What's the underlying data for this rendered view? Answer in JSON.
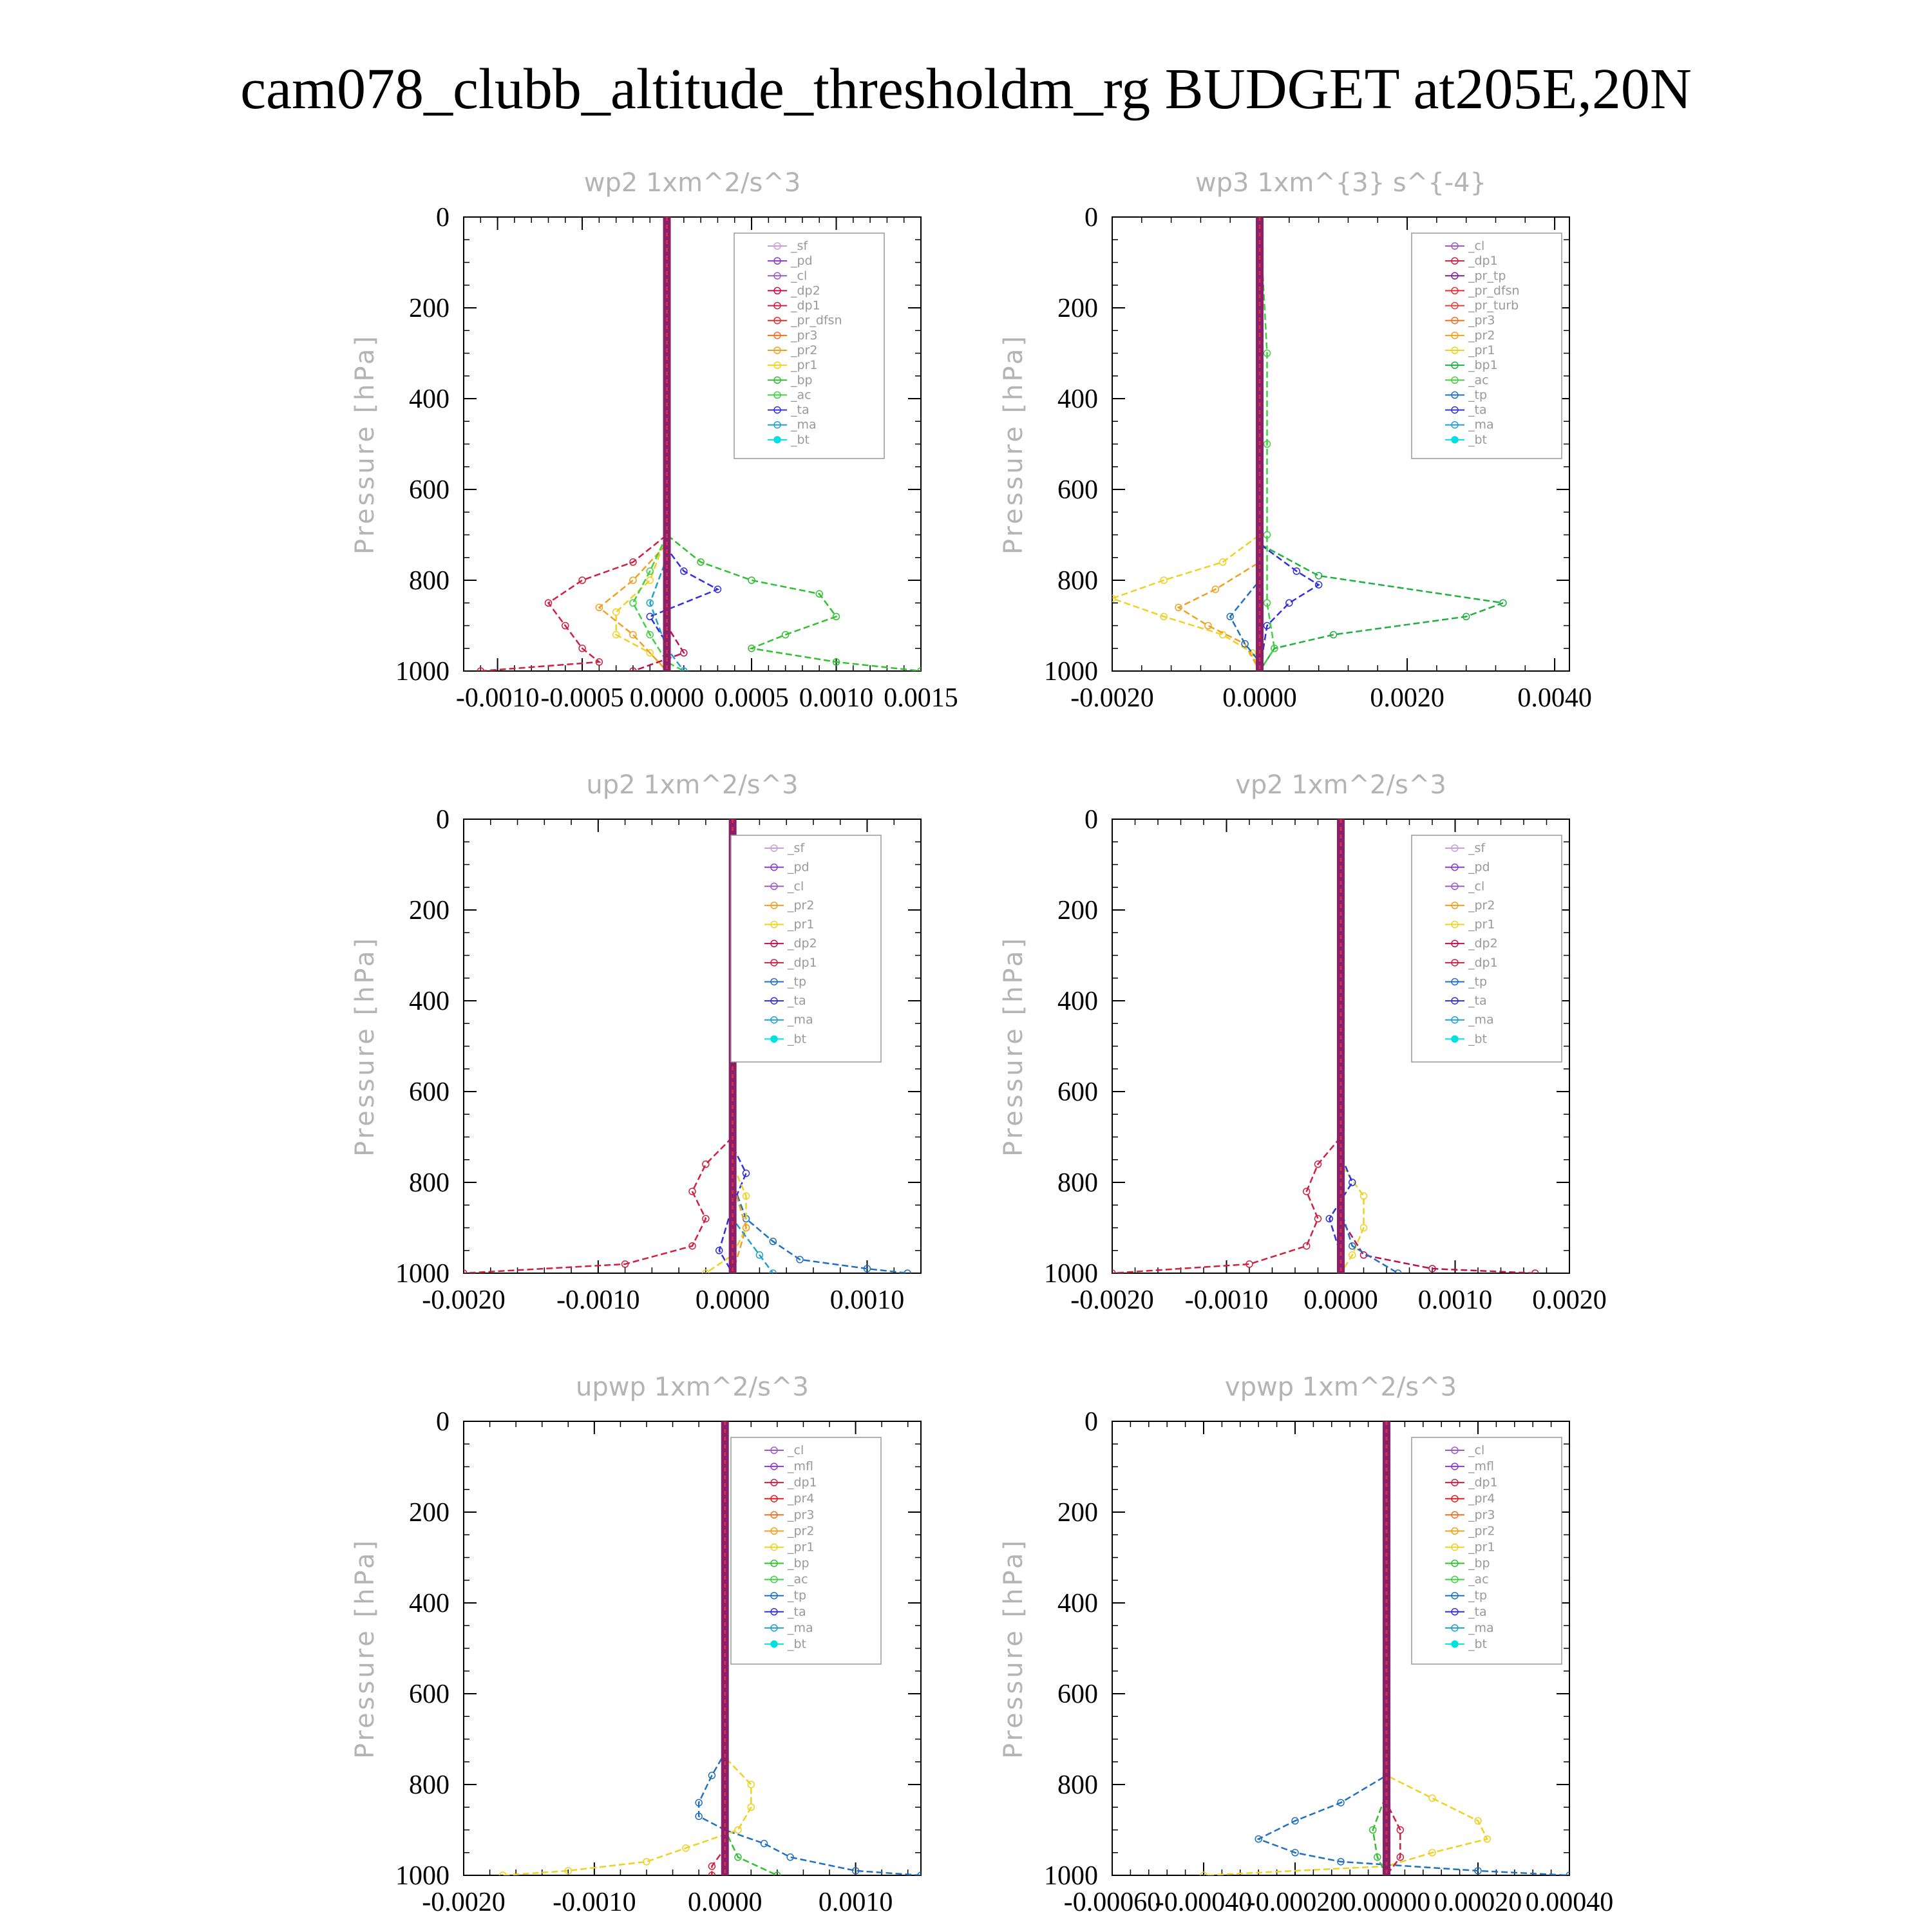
{
  "figure_title": "cam078_clubb_altitude_thresholdm_rg  BUDGET at205E,20N",
  "colors": {
    "_sf": "#c9a0dc",
    "_pd": "#8a3cc8",
    "_cl": "#a05ac8",
    "_mfl": "#8a3cc8",
    "_dp2": "#c01050",
    "_dp1": "#d02040",
    "_pr_dfsn": "#e03030",
    "_pr_tp": "#8020a0",
    "_pr_turb": "#e04040",
    "_pr4": "#e02020",
    "_pr3": "#f07020",
    "_pr2": "#f0a020",
    "_pr1": "#f0d020",
    "_bp1": "#20b040",
    "_bp": "#30c030",
    "_ac": "#40d040",
    "_tp": "#2070c0",
    "_ta": "#3030e0",
    "_ma": "#20a0d0",
    "_bt": "#00e0e0"
  },
  "chart_data": [
    {
      "type": "line",
      "title": "wp2   1xm^2/s^3",
      "ylabel": "Pressure [hPa]",
      "xlim": [
        -0.0012,
        0.0015
      ],
      "xticks": [
        "-0.0010",
        "-0.0005",
        "0.0000",
        "0.0005",
        "0.0010",
        "0.0015"
      ],
      "xtick_values": [
        -0.001,
        -0.0005,
        0.0,
        0.0005,
        0.001,
        0.0015
      ],
      "ylim": [
        1000,
        0
      ],
      "yticks": [
        "0",
        "200",
        "400",
        "600",
        "800",
        "1000"
      ],
      "ytick_values": [
        0,
        200,
        400,
        600,
        800,
        1000
      ],
      "legend": [
        "_sf",
        "_pd",
        "_cl",
        "_dp2",
        "_dp1",
        "_pr_dfsn",
        "_pr3",
        "_pr2",
        "_pr1",
        "_bp",
        "_ac",
        "_ta",
        "_ma",
        "_bt"
      ],
      "series": [
        {
          "name": "_dp1",
          "p": [
            0,
            700,
            760,
            800,
            850,
            900,
            950,
            980,
            1000
          ],
          "v": [
            0,
            0,
            -0.0002,
            -0.0005,
            -0.0007,
            -0.0006,
            -0.0005,
            -0.0004,
            -0.0011
          ]
        },
        {
          "name": "_bp",
          "p": [
            0,
            700,
            760,
            800,
            830,
            880,
            920,
            950,
            980,
            1000
          ],
          "v": [
            0,
            0,
            0.0002,
            0.0005,
            0.0009,
            0.001,
            0.0007,
            0.0005,
            0.001,
            0.0015
          ]
        },
        {
          "name": "_pr1",
          "p": [
            0,
            700,
            800,
            870,
            920,
            960,
            1000
          ],
          "v": [
            0,
            0,
            -0.0001,
            -0.0003,
            -0.0003,
            -0.0001,
            0
          ]
        },
        {
          "name": "_pr2",
          "p": [
            0,
            720,
            800,
            860,
            920,
            1000
          ],
          "v": [
            0,
            0,
            -0.0002,
            -0.0004,
            -0.0002,
            0
          ]
        },
        {
          "name": "_ac",
          "p": [
            0,
            700,
            780,
            850,
            920,
            980,
            1000
          ],
          "v": [
            0,
            0,
            -0.0001,
            -0.0002,
            -0.0001,
            0,
            0.0001
          ]
        },
        {
          "name": "_ta",
          "p": [
            0,
            730,
            780,
            820,
            880,
            940,
            1000
          ],
          "v": [
            0,
            0,
            0.0001,
            0.0003,
            -0.0001,
            0,
            0
          ]
        },
        {
          "name": "_ma",
          "p": [
            0,
            750,
            850,
            950,
            1000
          ],
          "v": [
            0,
            0,
            -0.0001,
            0,
            0.0001
          ]
        },
        {
          "name": "_dp2",
          "p": [
            0,
            900,
            960,
            1000
          ],
          "v": [
            0,
            0,
            0.0001,
            -0.0002
          ]
        }
      ]
    },
    {
      "type": "line",
      "title": "wp3   1xm^{3} s^{-4}",
      "ylabel": "Pressure [hPa]",
      "xlim": [
        -0.002,
        0.0042
      ],
      "xticks": [
        "-0.0020",
        "0.0000",
        "0.0020",
        "0.0040"
      ],
      "xtick_values": [
        -0.002,
        0.0,
        0.002,
        0.004
      ],
      "ylim": [
        1000,
        0
      ],
      "yticks": [
        "0",
        "200",
        "400",
        "600",
        "800",
        "1000"
      ],
      "ytick_values": [
        0,
        200,
        400,
        600,
        800,
        1000
      ],
      "legend": [
        "_cl",
        "_dp1",
        "_pr_tp",
        "_pr_dfsn",
        "_pr_turb",
        "_pr3",
        "_pr2",
        "_pr1",
        "_bp1",
        "_ac",
        "_tp",
        "_ta",
        "_ma",
        "_bt"
      ],
      "series": [
        {
          "name": "_pr1",
          "p": [
            0,
            700,
            760,
            800,
            840,
            880,
            920,
            960,
            1000
          ],
          "v": [
            0,
            0,
            -0.0005,
            -0.0013,
            -0.002,
            -0.0013,
            -0.0005,
            -0.0001,
            0
          ]
        },
        {
          "name": "_pr2",
          "p": [
            0,
            760,
            820,
            860,
            900,
            940,
            1000
          ],
          "v": [
            0,
            0,
            -0.0006,
            -0.0011,
            -0.0007,
            -0.0002,
            0
          ]
        },
        {
          "name": "_bp1",
          "p": [
            0,
            720,
            790,
            850,
            880,
            920,
            950,
            1000
          ],
          "v": [
            0,
            0,
            0.0008,
            0.0033,
            0.0028,
            0.001,
            0.0002,
            0
          ]
        },
        {
          "name": "_ta",
          "p": [
            0,
            720,
            780,
            810,
            850,
            900,
            1000
          ],
          "v": [
            0,
            0,
            0.0005,
            0.0008,
            0.0004,
            0.0001,
            0
          ]
        },
        {
          "name": "_ac",
          "p": [
            0,
            300,
            500,
            700,
            850,
            950,
            1000
          ],
          "v": [
            0,
            0.0001,
            0.0001,
            0.0001,
            0.0001,
            0.0002,
            0
          ]
        },
        {
          "name": "_tp",
          "p": [
            0,
            800,
            880,
            940,
            980,
            1000
          ],
          "v": [
            0,
            0,
            -0.0004,
            -0.0002,
            0,
            0
          ]
        }
      ]
    },
    {
      "type": "line",
      "title": "up2   1xm^2/s^3",
      "ylabel": "Pressure [hPa]",
      "xlim": [
        -0.002,
        0.0014
      ],
      "xticks": [
        "-0.0020",
        "-0.0010",
        "0.0000",
        "0.0010"
      ],
      "xtick_values": [
        -0.002,
        -0.001,
        0.0,
        0.001
      ],
      "ylim": [
        1000,
        0
      ],
      "yticks": [
        "0",
        "200",
        "400",
        "600",
        "800",
        "1000"
      ],
      "ytick_values": [
        0,
        200,
        400,
        600,
        800,
        1000
      ],
      "legend": [
        "_sf",
        "_pd",
        "_cl",
        "_pr2",
        "_pr1",
        "_dp2",
        "_dp1",
        "_tp",
        "_ta",
        "_ma",
        "_bt"
      ],
      "series": [
        {
          "name": "_dp1",
          "p": [
            0,
            700,
            760,
            820,
            880,
            940,
            980,
            1000
          ],
          "v": [
            0,
            0,
            -0.0002,
            -0.0003,
            -0.0002,
            -0.0003,
            -0.0008,
            -0.002
          ]
        },
        {
          "name": "_tp",
          "p": [
            0,
            800,
            880,
            930,
            970,
            990,
            1000
          ],
          "v": [
            0,
            0,
            0.0001,
            0.0003,
            0.0005,
            0.001,
            0.0013
          ]
        },
        {
          "name": "_ta",
          "p": [
            0,
            720,
            780,
            850,
            950,
            1000
          ],
          "v": [
            0,
            0,
            0.0001,
            0,
            -0.0001,
            0
          ]
        },
        {
          "name": "_pr1",
          "p": [
            0,
            760,
            830,
            900,
            960,
            1000
          ],
          "v": [
            0,
            0,
            0.0001,
            0.0001,
            0,
            -0.0002
          ]
        },
        {
          "name": "_pr2",
          "p": [
            0,
            800,
            900,
            1000
          ],
          "v": [
            0,
            0,
            0.0001,
            0
          ]
        },
        {
          "name": "_ma",
          "p": [
            0,
            880,
            960,
            1000
          ],
          "v": [
            0,
            0,
            0.0002,
            0.0003
          ]
        }
      ]
    },
    {
      "type": "line",
      "title": "vp2   1xm^2/s^3",
      "ylabel": "Pressure [hPa]",
      "xlim": [
        -0.002,
        0.002
      ],
      "xticks": [
        "-0.0020",
        "-0.0010",
        "0.0000",
        "0.0010",
        "0.0020"
      ],
      "xtick_values": [
        -0.002,
        -0.001,
        0.0,
        0.001,
        0.002
      ],
      "ylim": [
        1000,
        0
      ],
      "yticks": [
        "0",
        "200",
        "400",
        "600",
        "800",
        "1000"
      ],
      "ytick_values": [
        0,
        200,
        400,
        600,
        800,
        1000
      ],
      "legend": [
        "_sf",
        "_pd",
        "_cl",
        "_pr2",
        "_pr1",
        "_dp2",
        "_dp1",
        "_tp",
        "_ta",
        "_ma",
        "_bt"
      ],
      "series": [
        {
          "name": "_dp1",
          "p": [
            0,
            700,
            760,
            820,
            880,
            940,
            980,
            1000
          ],
          "v": [
            0,
            0,
            -0.0002,
            -0.0003,
            -0.0002,
            -0.0003,
            -0.0008,
            -0.002
          ]
        },
        {
          "name": "_dp2",
          "p": [
            0,
            880,
            960,
            990,
            1000
          ],
          "v": [
            0,
            0,
            0.0002,
            0.0008,
            0.0017
          ]
        },
        {
          "name": "_pr1",
          "p": [
            0,
            760,
            830,
            900,
            960,
            1000
          ],
          "v": [
            0,
            0,
            0.0002,
            0.0002,
            0.0001,
            0
          ]
        },
        {
          "name": "_ta",
          "p": [
            0,
            740,
            800,
            880,
            960,
            1000
          ],
          "v": [
            0,
            0,
            0.0001,
            -0.0001,
            0,
            0
          ]
        },
        {
          "name": "_tp",
          "p": [
            0,
            860,
            940,
            1000
          ],
          "v": [
            0,
            0,
            0.0001,
            0.0005
          ]
        }
      ]
    },
    {
      "type": "line",
      "title": "upwp   1xm^2/s^3",
      "ylabel": "Pressure [hPa]",
      "xlim": [
        -0.002,
        0.0015
      ],
      "xticks": [
        "-0.0020",
        "-0.0010",
        "0.0000",
        "0.0010"
      ],
      "xtick_values": [
        -0.002,
        -0.001,
        0.0,
        0.001
      ],
      "ylim": [
        1000,
        0
      ],
      "yticks": [
        "0",
        "200",
        "400",
        "600",
        "800",
        "1000"
      ],
      "ytick_values": [
        0,
        200,
        400,
        600,
        800,
        1000
      ],
      "legend": [
        "_cl",
        "_mfl",
        "_dp1",
        "_pr4",
        "_pr3",
        "_pr2",
        "_pr1",
        "_bp",
        "_ac",
        "_tp",
        "_ta",
        "_ma",
        "_bt"
      ],
      "series": [
        {
          "name": "_tp",
          "p": [
            0,
            730,
            780,
            840,
            870,
            900,
            930,
            960,
            990,
            1000
          ],
          "v": [
            0,
            0,
            -0.0001,
            -0.0002,
            -0.0002,
            0,
            0.0003,
            0.0005,
            0.001,
            0.0015
          ]
        },
        {
          "name": "_pr1",
          "p": [
            0,
            740,
            800,
            850,
            900,
            940,
            970,
            990,
            1000
          ],
          "v": [
            0,
            0,
            0.0002,
            0.0002,
            0.0001,
            -0.0003,
            -0.0006,
            -0.0012,
            -0.0017
          ]
        },
        {
          "name": "_bp",
          "p": [
            0,
            900,
            960,
            1000
          ],
          "v": [
            0,
            0,
            0.0001,
            0.0004
          ]
        },
        {
          "name": "_dp1",
          "p": [
            0,
            940,
            980,
            1000
          ],
          "v": [
            0,
            0,
            -0.0001,
            -0.0001
          ]
        }
      ]
    },
    {
      "type": "line",
      "title": "vpwp   1xm^2/s^3",
      "ylabel": "Pressure [hPa]",
      "xlim": [
        -0.0006,
        0.0004
      ],
      "xticks": [
        "-0.00060",
        "-0.00040",
        "-0.00020",
        "0.00000",
        "0.00020",
        "0.00040"
      ],
      "xtick_values": [
        -0.0006,
        -0.0004,
        -0.0002,
        0.0,
        0.0002,
        0.0004
      ],
      "ylim": [
        1000,
        0
      ],
      "yticks": [
        "0",
        "200",
        "400",
        "600",
        "800",
        "1000"
      ],
      "ytick_values": [
        0,
        200,
        400,
        600,
        800,
        1000
      ],
      "legend": [
        "_cl",
        "_mfl",
        "_dp1",
        "_pr4",
        "_pr3",
        "_pr2",
        "_pr1",
        "_bp",
        "_ac",
        "_tp",
        "_ta",
        "_ma",
        "_bt"
      ],
      "series": [
        {
          "name": "_tp",
          "p": [
            0,
            780,
            840,
            880,
            920,
            950,
            970,
            990,
            1000
          ],
          "v": [
            0,
            0,
            -0.0001,
            -0.0002,
            -0.00028,
            -0.0002,
            -0.0001,
            0.0002,
            0.0004
          ]
        },
        {
          "name": "_pr1",
          "p": [
            0,
            780,
            830,
            880,
            920,
            950,
            980,
            1000
          ],
          "v": [
            0,
            0,
            0.0001,
            0.0002,
            0.00022,
            0.0001,
            0,
            -0.0004
          ]
        },
        {
          "name": "_dp1",
          "p": [
            0,
            840,
            900,
            960,
            1000
          ],
          "v": [
            0,
            0,
            3e-05,
            3e-05,
            0
          ]
        },
        {
          "name": "_bp",
          "p": [
            0,
            820,
            900,
            960,
            1000
          ],
          "v": [
            0,
            0,
            -3e-05,
            -2e-05,
            0
          ]
        }
      ]
    }
  ]
}
